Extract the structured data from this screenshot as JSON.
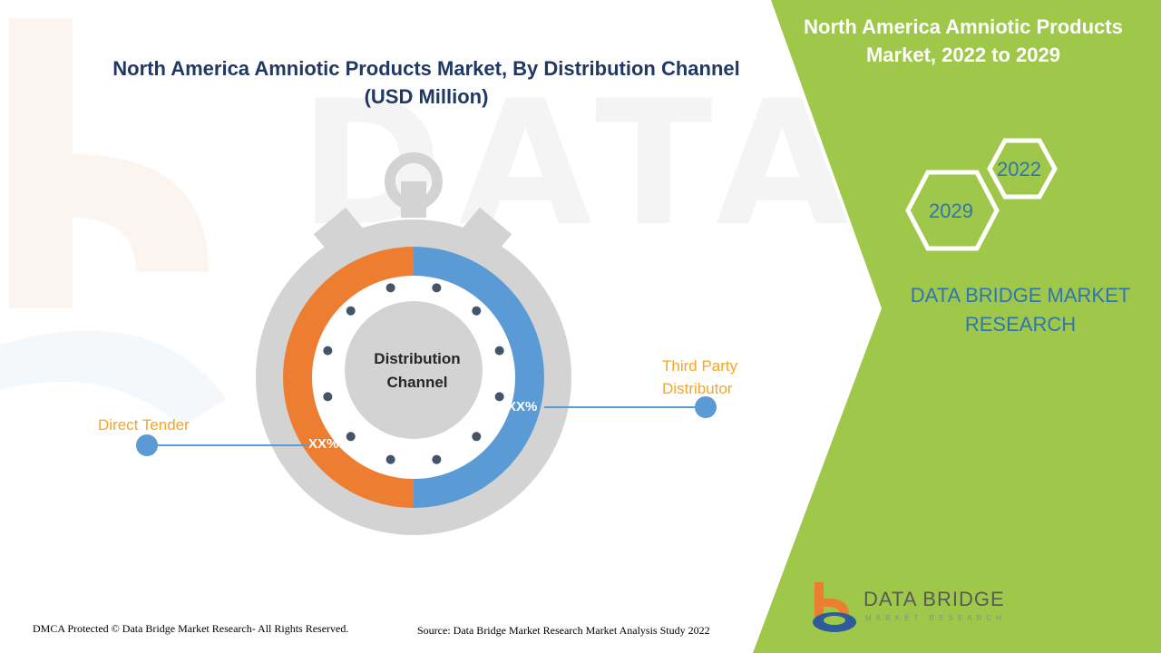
{
  "chart_data": {
    "type": "pie",
    "title": "North America Amniotic Products Market, By Distribution Channel (USD Million)",
    "center_label": "Distribution Channel",
    "categories": [
      "Direct Tender",
      "Third Party Distributor"
    ],
    "values": [
      50,
      50
    ],
    "data_labels": [
      "XX%",
      "XX%"
    ],
    "colors": [
      "#ed7d31",
      "#5b9bd5"
    ]
  },
  "panel": {
    "title": "North America Amniotic Products Market, 2022 to 2029",
    "year_start": "2022",
    "year_end": "2029",
    "brand": "DATA BRIDGE MARKET RESEARCH",
    "accent_color": "#9fc84a"
  },
  "footer": {
    "copyright": "DMCA Protected © Data Bridge Market Research- All Rights Reserved.",
    "source": "Source: Data Bridge Market Research Market Analysis Study 2022"
  },
  "logo": {
    "name": "DATA BRIDGE",
    "tagline": "MARKET RESEARCH"
  }
}
